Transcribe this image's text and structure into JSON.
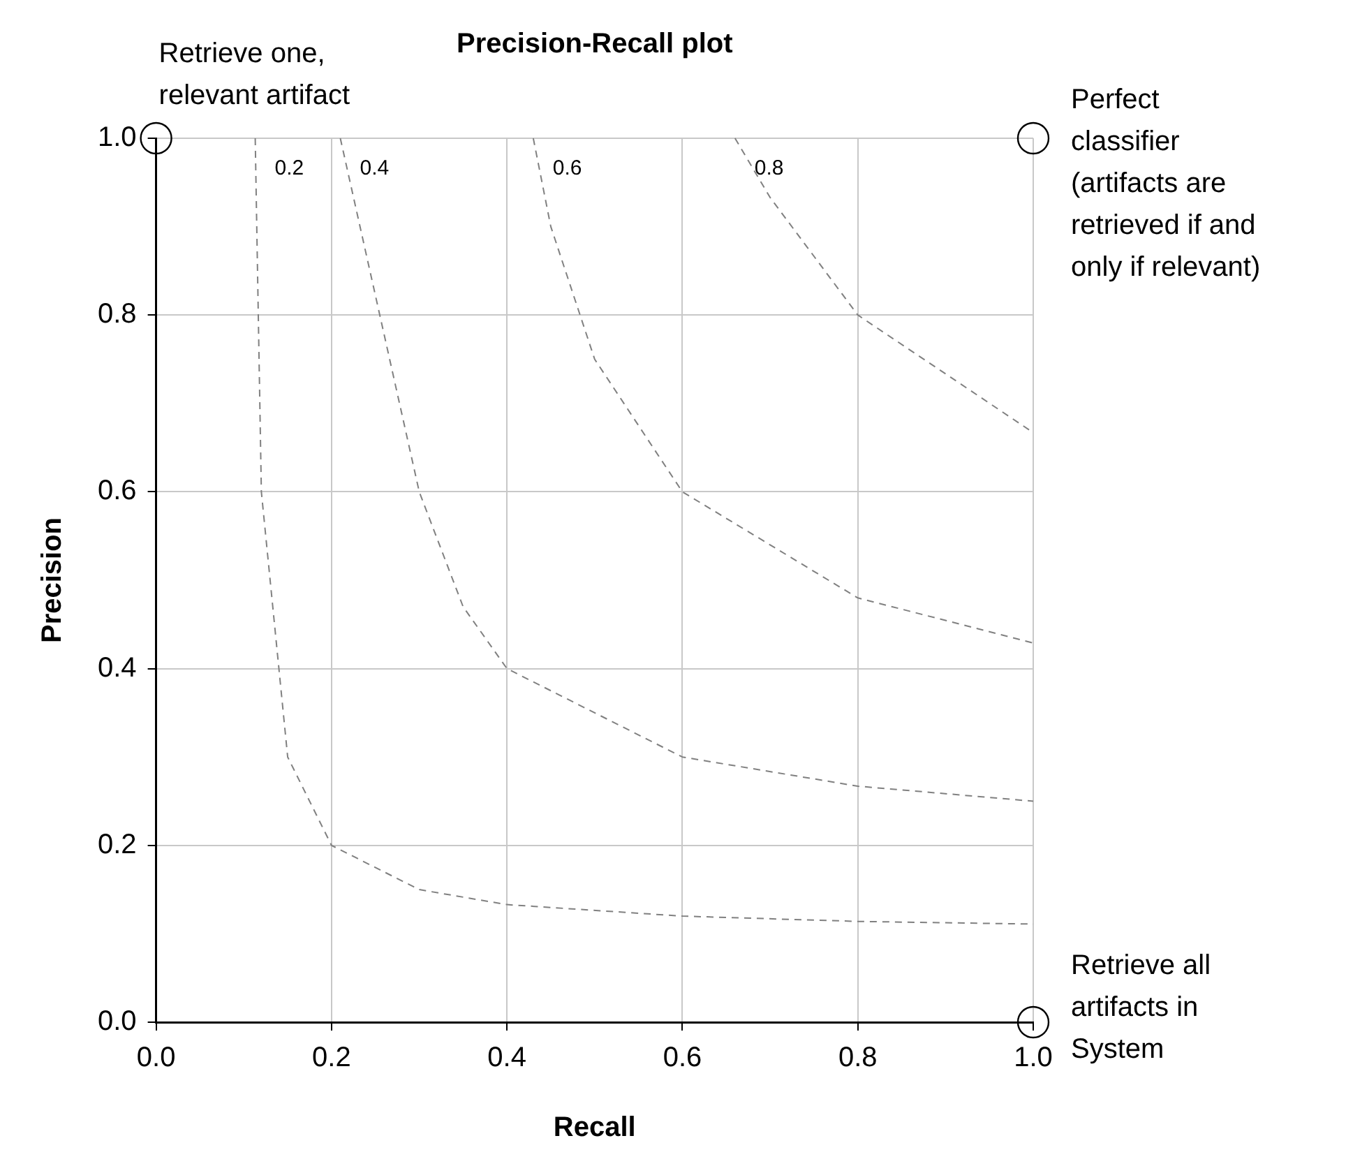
{
  "chart_data": {
    "type": "line",
    "title": "Precision-Recall plot",
    "xlabel": "Recall",
    "ylabel": "Precision",
    "xlim": [
      0,
      1
    ],
    "ylim": [
      0,
      1
    ],
    "xticks": [
      {
        "value": 0,
        "label": "0.0"
      },
      {
        "value": 0.2,
        "label": "0.2"
      },
      {
        "value": 0.4,
        "label": "0.4"
      },
      {
        "value": 0.6,
        "label": "0.6"
      },
      {
        "value": 0.8,
        "label": "0.8"
      },
      {
        "value": 1,
        "label": "1.0"
      }
    ],
    "yticks": [
      {
        "value": 0,
        "label": "0.0"
      },
      {
        "value": 0.2,
        "label": "0.2"
      },
      {
        "value": 0.4,
        "label": "0.4"
      },
      {
        "value": 0.6,
        "label": "0.6"
      },
      {
        "value": 0.8,
        "label": "0.8"
      },
      {
        "value": 1,
        "label": "1.0"
      }
    ],
    "grid": true,
    "legend": false,
    "line_style": "dashed",
    "series": [
      {
        "name": "0.2",
        "color": "#808080",
        "x": [
          0.113,
          0.12,
          0.15,
          0.2,
          0.3,
          0.4,
          0.6,
          0.8,
          1.0
        ],
        "values": [
          1.0,
          0.6,
          0.3,
          0.2,
          0.15,
          0.133,
          0.12,
          0.114,
          0.111
        ]
      },
      {
        "name": "0.4",
        "color": "#808080",
        "x": [
          0.21,
          0.3,
          0.35,
          0.4,
          0.6,
          0.8,
          1.0
        ],
        "values": [
          1.0,
          0.6,
          0.47,
          0.4,
          0.3,
          0.267,
          0.25
        ]
      },
      {
        "name": "0.6",
        "color": "#808080",
        "x": [
          0.43,
          0.45,
          0.5,
          0.6,
          0.8,
          1.0
        ],
        "values": [
          1.0,
          0.9,
          0.75,
          0.6,
          0.48,
          0.429
        ]
      },
      {
        "name": "0.8",
        "color": "#808080",
        "x": [
          0.66,
          0.7,
          0.8,
          1.0
        ],
        "values": [
          1.0,
          0.933,
          0.8,
          0.667
        ]
      },
      {
        "type": "scatter",
        "name": "Retrieve one,\nrelevant artifact",
        "color": "#000000",
        "marker": "circle",
        "x": [
          0
        ],
        "values": [
          1
        ]
      },
      {
        "type": "scatter",
        "name": "Perfect\nclassifier\n(artifacts are\nretrieved if and\nonly if relevant)",
        "color": "#000000",
        "marker": "circle",
        "x": [
          1
        ],
        "values": [
          1
        ]
      },
      {
        "type": "scatter",
        "name": "Retrieve all\nartifacts in\nSystem",
        "color": "#000000",
        "marker": "circle",
        "x": [
          1
        ],
        "values": [
          0
        ]
      }
    ]
  }
}
